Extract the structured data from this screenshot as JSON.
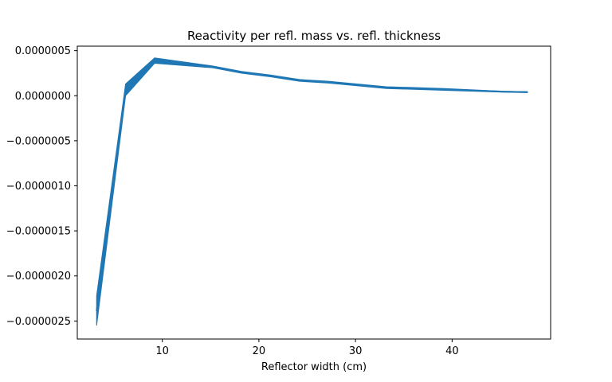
{
  "chart_data": {
    "type": "line",
    "title": "Reactivity per refl. mass vs. refl. thickness",
    "xlabel": "Reflector width (cm)",
    "ylabel": "",
    "xlim": [
      1.2,
      50.2
    ],
    "ylim": [
      -2.7e-06,
      5.5e-07
    ],
    "x_ticks": [
      10,
      20,
      30,
      40
    ],
    "x_tick_labels": [
      "10",
      "20",
      "30",
      "40"
    ],
    "y_ticks": [
      5e-07,
      0.0,
      -5e-07,
      -1e-06,
      -1.5e-06,
      -2e-06,
      -2.5e-06
    ],
    "y_tick_labels": [
      "0.0000005",
      "0.0000000",
      "−0.0000005",
      "−0.0000010",
      "−0.0000015",
      "−0.0000020",
      "−0.0000025"
    ],
    "grid": false,
    "color": "#1f77b4",
    "series": [
      {
        "x": [
          3.2,
          6.2,
          9.2,
          15.2,
          18.2,
          21.2,
          24.2,
          27.2,
          33.2,
          39.2,
          45.2,
          47.8
        ],
        "y": [
          -2.39e-06,
          7e-08,
          3.8e-07,
          3.2e-07,
          2.6e-07,
          2.2e-07,
          1.7e-07,
          1.5e-07,
          9e-08,
          7e-08,
          4.5e-08,
          4e-08
        ],
        "y_low": [
          -2.55e-06,
          0.0,
          3.6e-07,
          3.1e-07,
          2.5e-07,
          2.1e-07,
          1.6e-07,
          1.4e-07,
          8e-08,
          6e-08,
          4e-08,
          3.5e-08
        ],
        "y_high": [
          -2.22e-06,
          1.3e-07,
          4.2e-07,
          3.3e-07,
          2.7e-07,
          2.3e-07,
          1.8e-07,
          1.6e-07,
          1e-07,
          8e-08,
          5e-08,
          4.5e-08
        ]
      }
    ]
  }
}
